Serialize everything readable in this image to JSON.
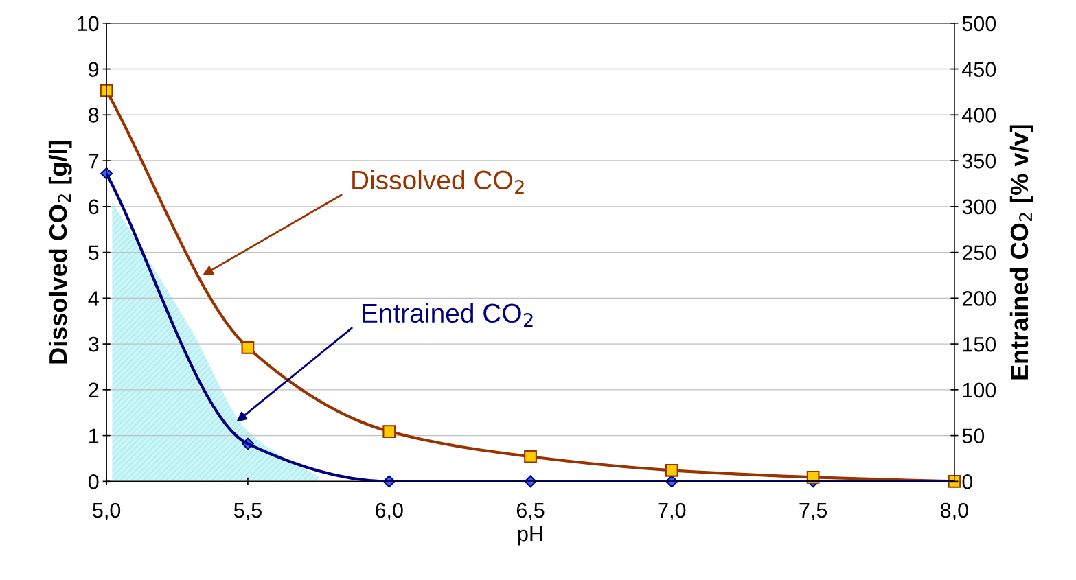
{
  "chart_data": {
    "type": "line",
    "xlabel": "pH",
    "ylabel": "Dissolved CO$_{2}$ [g/l]",
    "y2label": "Entrained CO$_{2}$ [% v/v]",
    "x": [
      5.0,
      5.5,
      6.0,
      6.5,
      7.0,
      7.5,
      8.0
    ],
    "series": [
      {
        "color": "#993300",
        "colors": [
          "#ffcc00",
          "#ffcc00",
          "#ffcc00",
          "#ffcc00",
          "#ffcc00",
          "#ffcc00",
          "#ffcc00"
        ],
        "marker": "square",
        "values": [
          8.53,
          2.92,
          1.09,
          0.54,
          0.24,
          0.09,
          0.0
        ]
      },
      {
        "color": "#000080",
        "colors": [
          "#3366ff",
          "#3366ff",
          "#3366ff",
          "#3366ff",
          "#3366ff",
          "#3366ff",
          "#3366ff"
        ],
        "marker": "diamond",
        "axis": "y2",
        "values": [
          336,
          41,
          0,
          0,
          0,
          0,
          0
        ]
      },
      {
        "type": "area",
        "color": "#ccf5f7",
        "x": [
          5.02,
          5.3,
          5.5,
          5.75
        ],
        "values": [
          6.1,
          3.3,
          1.1,
          0.1
        ]
      }
    ],
    "annotations": [
      {
        "text": "Dissolved CO$_{2}$",
        "x": 5.34,
        "y": 4.5
      },
      {
        "text": "Entrained CO$_{2}$",
        "x": 5.46,
        "y": 1.3
      }
    ],
    "xlim": [
      5.0,
      8.0
    ],
    "xticks": [
      {
        "value": 5.0,
        "label": "5,0"
      },
      {
        "value": 5.5,
        "label": "5,5"
      },
      {
        "value": 6.0,
        "label": "6,0"
      },
      {
        "value": 6.5,
        "label": "6,5"
      },
      {
        "value": 7.0,
        "label": "7,0"
      },
      {
        "value": 7.5,
        "label": "7,5"
      },
      {
        "value": 8.0,
        "label": "8,0"
      }
    ],
    "ylim": [
      0,
      10
    ],
    "yticks": [
      0,
      1,
      2,
      3,
      4,
      5,
      6,
      7,
      8,
      9,
      10
    ],
    "y2lim": [
      0,
      500
    ],
    "y2ticks": [
      0,
      50,
      100,
      150,
      200,
      250,
      300,
      350,
      400,
      450,
      500
    ],
    "grid": "y",
    "legend": false,
    "line_style": "solid"
  }
}
